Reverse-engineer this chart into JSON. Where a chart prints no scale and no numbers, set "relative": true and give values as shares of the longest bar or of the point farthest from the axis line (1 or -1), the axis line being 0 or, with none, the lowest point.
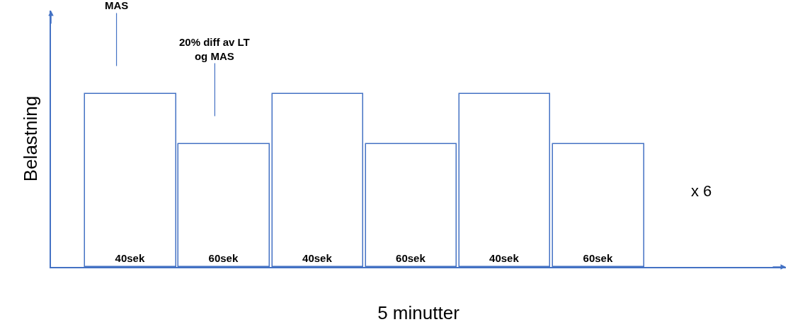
{
  "chart_data": {
    "type": "bar",
    "relative": true,
    "xlabel": "5 minutter",
    "ylabel": "Belastning",
    "categories": [
      "40sek",
      "60sek",
      "40sek",
      "60sek",
      "40sek",
      "60sek"
    ],
    "values": [
      1,
      0.71,
      1,
      0.71,
      1,
      0.71
    ],
    "color": "#4472c4",
    "tick_labels": false,
    "legend": false,
    "annotations": [
      "MAS",
      "20% diff av LT\nog MAS",
      "x 6"
    ]
  }
}
